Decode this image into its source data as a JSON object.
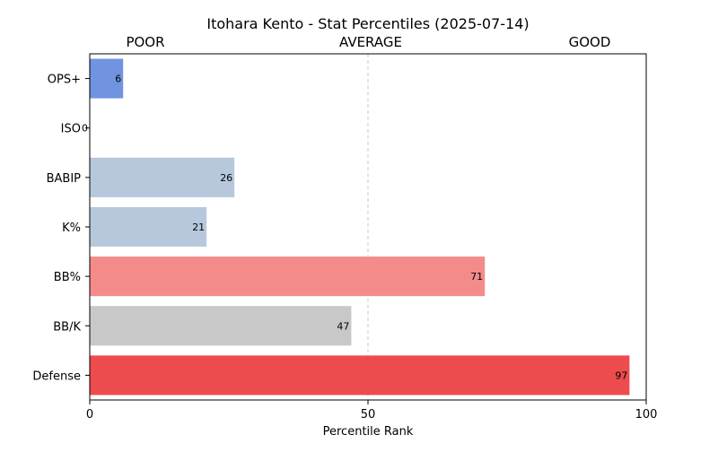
{
  "chart_data": {
    "type": "bar",
    "orientation": "horizontal",
    "title": "Itohara Kento - Stat Percentiles (2025-07-14)",
    "xlabel": "Percentile Rank",
    "ylabel": "",
    "xlim": [
      0,
      100
    ],
    "xticks": [
      0,
      50,
      100
    ],
    "zone_labels": [
      "POOR",
      "AVERAGE",
      "GOOD"
    ],
    "reference_line": 50,
    "grid": false,
    "categories": [
      "OPS+",
      "ISO",
      "BABIP",
      "K%",
      "BB%",
      "BB/K",
      "Defense"
    ],
    "values": [
      6,
      0,
      26,
      21,
      71,
      47,
      97
    ],
    "colors": [
      "#7094df",
      "#b7c8dc",
      "#b7c8dc",
      "#b7c8dc",
      "#f38b8a",
      "#c8c8c8",
      "#ed4c4e"
    ]
  }
}
